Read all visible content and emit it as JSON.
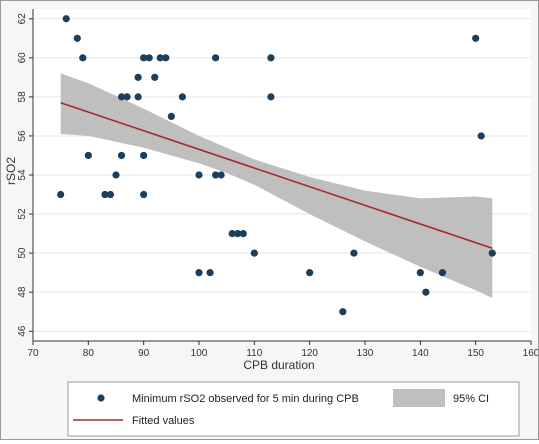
{
  "chart_data": {
    "type": "scatter",
    "xlabel": "CPB duration",
    "ylabel": "rSO2",
    "xlim": [
      70,
      160
    ],
    "ylim": [
      45.5,
      62.5
    ],
    "xticks": [
      70,
      80,
      90,
      100,
      110,
      120,
      130,
      140,
      150,
      160
    ],
    "yticks": [
      46,
      48,
      50,
      52,
      54,
      56,
      58,
      60,
      62
    ],
    "grid": true,
    "legend_position": "bottom",
    "colors": {
      "points": "#1b3f5c",
      "fit_line": "#a52a2a",
      "ci_band": "#bfbfbf",
      "plot_bg": "#ffffff",
      "outer_bg": "#f4f6f8"
    },
    "series": [
      {
        "name": "Minimum rSO2 observed for 5 min during CPB",
        "kind": "scatter",
        "points": [
          [
            75,
            53
          ],
          [
            76,
            62
          ],
          [
            78,
            61
          ],
          [
            79,
            60
          ],
          [
            80,
            55
          ],
          [
            83,
            53
          ],
          [
            84,
            53
          ],
          [
            85,
            54
          ],
          [
            86,
            55
          ],
          [
            86,
            58
          ],
          [
            87,
            58
          ],
          [
            89,
            58
          ],
          [
            89,
            59
          ],
          [
            90,
            55
          ],
          [
            90,
            53
          ],
          [
            90,
            60
          ],
          [
            91,
            60
          ],
          [
            92,
            59
          ],
          [
            93,
            60
          ],
          [
            94,
            60
          ],
          [
            95,
            57
          ],
          [
            97,
            58
          ],
          [
            100,
            54
          ],
          [
            100,
            49
          ],
          [
            102,
            49
          ],
          [
            103,
            60
          ],
          [
            103,
            54
          ],
          [
            104,
            54
          ],
          [
            106,
            51
          ],
          [
            107,
            51
          ],
          [
            108,
            51
          ],
          [
            110,
            50
          ],
          [
            113,
            60
          ],
          [
            113,
            58
          ],
          [
            120,
            49
          ],
          [
            126,
            47
          ],
          [
            128,
            50
          ],
          [
            140,
            49
          ],
          [
            141,
            48
          ],
          [
            144,
            49
          ],
          [
            150,
            61
          ],
          [
            151,
            56
          ],
          [
            153,
            50
          ]
        ]
      },
      {
        "name": "Fitted values",
        "kind": "line",
        "x": [
          75,
          153
        ],
        "y": [
          57.7,
          50.25
        ]
      },
      {
        "name": "95% CI",
        "kind": "band",
        "x": [
          75,
          80,
          90,
          100,
          105,
          110,
          120,
          130,
          140,
          150,
          153
        ],
        "lower": [
          56.1,
          56.0,
          55.4,
          54.6,
          54.1,
          53.5,
          52.0,
          50.6,
          49.3,
          48.1,
          47.7
        ],
        "upper": [
          59.2,
          58.7,
          57.4,
          56.0,
          55.4,
          54.8,
          53.9,
          53.2,
          52.8,
          52.9,
          52.8
        ]
      }
    ]
  }
}
